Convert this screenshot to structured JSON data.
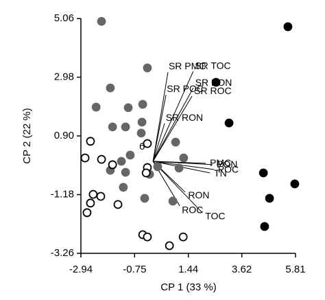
{
  "chart_data": {
    "type": "scatter",
    "xlabel": "CP 1 (33 %)",
    "ylabel": "CP 2 (22 %)",
    "xlim": [
      -2.94,
      5.81
    ],
    "ylim": [
      -3.26,
      5.06
    ],
    "xticks": [
      -2.94,
      -0.75,
      1.44,
      3.62,
      5.81
    ],
    "yticks": [
      5.06,
      2.98,
      {
        "value": 0.9,
        "label": "0.90"
      },
      -1.18,
      -3.26
    ],
    "annotation": "6",
    "series": [
      {
        "color": "#666666",
        "edgecolor": "#666666",
        "x": [
          -2.1,
          -0.23,
          -1.74,
          -2.32,
          -1.01,
          -0.42,
          -1.65,
          -1.12,
          -0.45,
          -0.48,
          0.92,
          -0.93,
          -1.29,
          1.25,
          0.19,
          -1.74,
          -1.12,
          -0.14,
          1.06,
          -1.21,
          -0.34,
          0.81
        ],
        "values": [
          4.96,
          3.31,
          2.6,
          1.92,
          1.9,
          2.02,
          1.22,
          1.22,
          1.39,
          1.0,
          0.68,
          0.22,
          0.0,
          0.12,
          -0.19,
          -0.32,
          -0.39,
          -0.46,
          -0.24,
          -0.92,
          -1.31,
          -1.41
        ]
      },
      {
        "color": "#000000",
        "edgecolor": "#000000",
        "x": [
          5.5,
          2.57,
          3.1,
          4.5,
          5.78,
          4.75,
          4.55
        ],
        "values": [
          4.77,
          2.8,
          1.36,
          -0.41,
          -0.8,
          -1.31,
          -2.31
        ]
      },
      {
        "color": "#ffffff",
        "edgecolor": "#000000",
        "x": [
          -2.55,
          -0.23,
          -2.77,
          -2.1,
          -1.65,
          -0.23,
          -0.28,
          -2.44,
          -2.13,
          -1.43,
          -2.55,
          -2.69,
          -0.42,
          -0.23,
          1.23,
          0.67
        ],
        "values": [
          0.71,
          0.63,
          0.12,
          0.07,
          -0.12,
          -0.22,
          -0.41,
          -1.17,
          -1.24,
          -1.53,
          -1.48,
          -1.82,
          -2.6,
          -2.68,
          -2.68,
          -2.99
        ]
      }
    ],
    "loadings": {
      "names": [
        "SR PMC",
        "SR TOC",
        "SR POC",
        "SR PON",
        "SR ROC",
        "SR RON",
        "PMC",
        "PON",
        "POC",
        "TN",
        "RON",
        "ROC",
        "TOC"
      ],
      "x": [
        0.61,
        1.64,
        0.53,
        1.64,
        1.59,
        0.47,
        2.15,
        2.43,
        2.48,
        2.32,
        1.31,
        1.09,
        2.01
      ],
      "values": [
        3.16,
        3.19,
        2.36,
        2.6,
        2.31,
        1.34,
        -0.07,
        -0.12,
        -0.29,
        -0.41,
        -1.09,
        -1.58,
        -1.82
      ]
    }
  }
}
